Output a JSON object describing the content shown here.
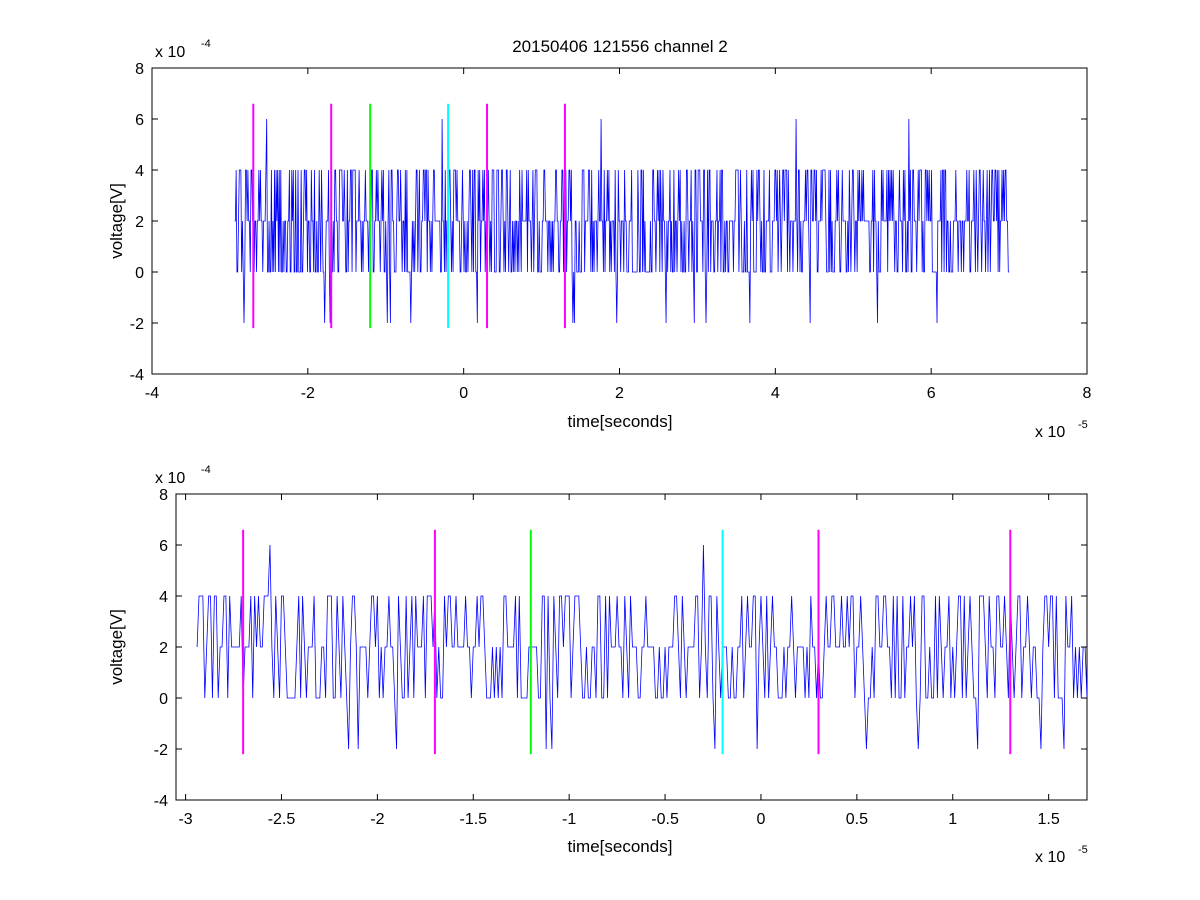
{
  "figure": {
    "title": "20150406 121556 channel 2"
  },
  "colors": {
    "signal": "#0000ff",
    "magenta": "#ff00ff",
    "green": "#00ff00",
    "cyan": "#00ffff",
    "axes": "#000000",
    "background": "#ffffff"
  },
  "chart_data": [
    {
      "type": "line",
      "title": "20150406 121556 channel 2",
      "xlabel": "time[seconds]",
      "ylabel": "voltage[V]",
      "x_exponent_label": "x 10",
      "x_exponent": "-5",
      "y_exponent_label": "x 10",
      "y_exponent": "-4",
      "xlim": [
        -4,
        8
      ],
      "ylim": [
        -4,
        8
      ],
      "xticks": [
        -4,
        -2,
        0,
        2,
        4,
        6,
        8
      ],
      "xtick_labels": [
        "-4",
        "-2",
        "0",
        "2",
        "4",
        "6",
        "8"
      ],
      "yticks": [
        -4,
        -2,
        0,
        2,
        4,
        6,
        8
      ],
      "ytick_labels": [
        "-4",
        "-2",
        "0",
        "2",
        "4",
        "6",
        "8"
      ],
      "grid": false,
      "series": [
        {
          "color": "#0000ff",
          "x_start": -2.94,
          "x_end": 7.0,
          "sample_count": 990,
          "levels": [
            -2,
            0,
            2,
            4,
            6
          ],
          "note_values": "quantized voltage noise between -2 and 6 (x1e-4 V)",
          "peaks": [
            {
              "x": -2.53,
              "y": 6
            },
            {
              "x": -0.28,
              "y": 6
            },
            {
              "x": 1.76,
              "y": 6
            },
            {
              "x": 4.27,
              "y": 6
            },
            {
              "x": 5.71,
              "y": 6
            }
          ]
        }
      ],
      "markers": [
        {
          "x": -2.7,
          "y_from": -2.2,
          "y_to": 6.6,
          "color": "#ff00ff"
        },
        {
          "x": -1.7,
          "y_from": -2.2,
          "y_to": 6.6,
          "color": "#ff00ff"
        },
        {
          "x": -1.2,
          "y_from": -2.2,
          "y_to": 6.6,
          "color": "#00ff00"
        },
        {
          "x": -0.2,
          "y_from": -2.2,
          "y_to": 6.6,
          "color": "#00ffff"
        },
        {
          "x": 0.3,
          "y_from": -2.2,
          "y_to": 6.6,
          "color": "#ff00ff"
        },
        {
          "x": 1.3,
          "y_from": -2.2,
          "y_to": 6.6,
          "color": "#ff00ff"
        }
      ]
    },
    {
      "type": "line",
      "title": "",
      "xlabel": "time[seconds]",
      "ylabel": "voltage[V]",
      "x_exponent_label": "x 10",
      "x_exponent": "-5",
      "y_exponent_label": "x 10",
      "y_exponent": "-4",
      "xlim": [
        -3.05,
        1.7
      ],
      "ylim": [
        -4,
        8
      ],
      "xticks": [
        -3,
        -2.5,
        -2,
        -1.5,
        -1,
        -0.5,
        0,
        0.5,
        1,
        1.5
      ],
      "xtick_labels": [
        "-3",
        "-2.5",
        "-2",
        "-1.5",
        "-1",
        "-0.5",
        "0",
        "0.5",
        "1",
        "1.5"
      ],
      "yticks": [
        -4,
        -2,
        0,
        2,
        4,
        6,
        8
      ],
      "ytick_labels": [
        "-4",
        "-2",
        "0",
        "2",
        "4",
        "6",
        "8"
      ],
      "grid": false,
      "series": [
        {
          "color": "#0000ff",
          "x_start": -2.94,
          "x_end": 1.7,
          "sample_count": 465,
          "levels": [
            -2,
            0,
            2,
            4,
            6
          ],
          "note_values": "quantized voltage noise between -2 and 6 (x1e-4 V)",
          "peaks": [
            {
              "x": -2.56,
              "y": 6
            },
            {
              "x": -0.3,
              "y": 6
            }
          ],
          "troughs": [
            {
              "x": -2.1,
              "y": -2
            },
            {
              "x": -1.9,
              "y": -2
            },
            {
              "x": -1.12,
              "y": -2
            },
            {
              "x": -0.02,
              "y": -2
            },
            {
              "x": 0.82,
              "y": -2
            },
            {
              "x": 1.46,
              "y": -2
            },
            {
              "x": 1.58,
              "y": -2
            }
          ]
        }
      ],
      "markers": [
        {
          "x": -2.7,
          "y_from": -2.2,
          "y_to": 6.6,
          "color": "#ff00ff"
        },
        {
          "x": -1.7,
          "y_from": -2.2,
          "y_to": 6.6,
          "color": "#ff00ff"
        },
        {
          "x": -1.2,
          "y_from": -2.2,
          "y_to": 6.6,
          "color": "#00ff00"
        },
        {
          "x": -0.2,
          "y_from": -2.2,
          "y_to": 6.6,
          "color": "#00ffff"
        },
        {
          "x": 0.3,
          "y_from": -2.2,
          "y_to": 6.6,
          "color": "#ff00ff"
        },
        {
          "x": 1.3,
          "y_from": -2.2,
          "y_to": 6.6,
          "color": "#ff00ff"
        }
      ]
    }
  ]
}
